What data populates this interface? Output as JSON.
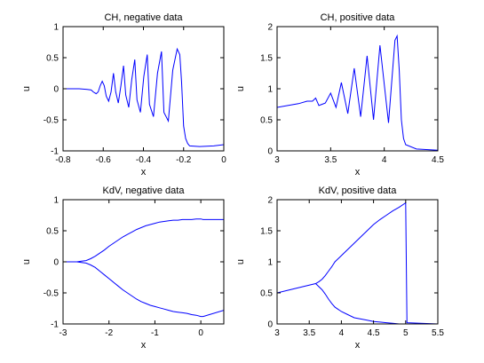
{
  "figure": {
    "line_color": "#0000ff",
    "axis_color": "#000000",
    "background": "#ffffff",
    "grid": false
  },
  "chart_data": [
    {
      "type": "line",
      "title": "CH, negative data",
      "xlabel": "x",
      "ylabel": "u",
      "xlim": [
        -0.8,
        0
      ],
      "ylim": [
        -1,
        1
      ],
      "xticks": [
        -0.8,
        -0.6,
        -0.4,
        -0.2,
        0
      ],
      "xticklabels": [
        "-0.8",
        "-0.6",
        "-0.4",
        "-0.2",
        "0"
      ],
      "yticks": [
        -1,
        -0.5,
        0,
        0.5,
        1
      ],
      "yticklabels": [
        "-1",
        "-0.5",
        "0",
        "0.5",
        "1"
      ],
      "series": [
        {
          "x": [
            -0.8,
            -0.72,
            -0.68,
            -0.66,
            -0.65,
            -0.64,
            -0.635,
            -0.625,
            -0.615,
            -0.605,
            -0.595,
            -0.585,
            -0.573,
            -0.561,
            -0.549,
            -0.538,
            -0.525,
            -0.512,
            -0.499,
            -0.488,
            -0.473,
            -0.458,
            -0.443,
            -0.432,
            -0.415,
            -0.398,
            -0.381,
            -0.37,
            -0.35,
            -0.33,
            -0.31,
            -0.298,
            -0.276,
            -0.254,
            -0.232,
            -0.219,
            -0.21,
            -0.2,
            -0.19,
            -0.18,
            -0.17,
            -0.12,
            -0.05,
            0
          ],
          "y": [
            0,
            0,
            -0.01,
            -0.02,
            -0.05,
            -0.07,
            -0.08,
            -0.05,
            0.05,
            0.12,
            0.05,
            -0.12,
            -0.2,
            -0.05,
            0.25,
            -0.05,
            -0.23,
            0.05,
            0.37,
            -0.1,
            -0.3,
            0.15,
            0.47,
            -0.18,
            -0.38,
            0.2,
            0.55,
            -0.25,
            -0.45,
            0.25,
            0.6,
            -0.38,
            -0.52,
            0.3,
            0.64,
            0.55,
            0.1,
            -0.6,
            -0.8,
            -0.88,
            -0.92,
            -0.93,
            -0.92,
            -0.9
          ]
        }
      ]
    },
    {
      "type": "line",
      "title": "CH, positive data",
      "xlabel": "x",
      "ylabel": "u",
      "xlim": [
        3,
        4.5
      ],
      "ylim": [
        0,
        2
      ],
      "xticks": [
        3,
        3.5,
        4,
        4.5
      ],
      "xticklabels": [
        "3",
        "3.5",
        "4",
        "4.5"
      ],
      "yticks": [
        0,
        0.5,
        1,
        1.5,
        2
      ],
      "yticklabels": [
        "0",
        "0.5",
        "1",
        "1.5",
        "2"
      ],
      "series": [
        {
          "x": [
            3.0,
            3.1,
            3.2,
            3.28,
            3.33,
            3.36,
            3.39,
            3.42,
            3.45,
            3.5,
            3.55,
            3.6,
            3.66,
            3.72,
            3.78,
            3.84,
            3.9,
            3.96,
            4.04,
            4.1,
            4.12,
            4.14,
            4.16,
            4.18,
            4.2,
            4.3,
            4.5
          ],
          "y": [
            0.7,
            0.73,
            0.76,
            0.8,
            0.8,
            0.85,
            0.73,
            0.75,
            0.77,
            0.93,
            0.7,
            1.1,
            0.6,
            1.33,
            0.55,
            1.53,
            0.5,
            1.7,
            0.45,
            1.78,
            1.85,
            1.3,
            0.5,
            0.2,
            0.1,
            0.03,
            0.01
          ]
        }
      ]
    },
    {
      "type": "line",
      "title": "KdV, negative data",
      "xlabel": "x",
      "ylabel": "u",
      "xlim": [
        -3,
        0.5
      ],
      "ylim": [
        -1,
        1
      ],
      "xticks": [
        -3,
        -2,
        -1,
        0
      ],
      "xticklabels": [
        "-3",
        "-2",
        "-1",
        "0"
      ],
      "yticks": [
        -1,
        -0.5,
        0,
        0.5,
        1
      ],
      "yticklabels": [
        "-1",
        "-0.5",
        "0",
        "0.5",
        "1"
      ],
      "series": [
        {
          "x": [
            -3.0,
            -2.9,
            -2.8,
            -2.7,
            -2.6,
            -2.5,
            -2.4,
            -2.3,
            -2.2,
            -2.1,
            -2.0,
            -1.9,
            -1.8,
            -1.7,
            -1.6,
            -1.5,
            -1.4,
            -1.3,
            -1.2,
            -1.1,
            -1.0,
            -0.9,
            -0.8,
            -0.7,
            -0.6,
            -0.5,
            -0.4,
            -0.3,
            -0.2,
            -0.1,
            0.0,
            0.05,
            0.5
          ],
          "y": [
            0.0,
            0.0,
            0.0,
            0.0,
            0.01,
            0.02,
            0.05,
            0.09,
            0.14,
            0.19,
            0.25,
            0.3,
            0.35,
            0.4,
            0.44,
            0.48,
            0.52,
            0.55,
            0.58,
            0.6,
            0.62,
            0.64,
            0.65,
            0.66,
            0.67,
            0.67,
            0.68,
            0.68,
            0.68,
            0.69,
            0.69,
            0.68,
            0.68
          ]
        },
        {
          "x": [
            -3.0,
            -2.9,
            -2.8,
            -2.7,
            -2.6,
            -2.5,
            -2.4,
            -2.3,
            -2.2,
            -2.1,
            -2.0,
            -1.9,
            -1.8,
            -1.7,
            -1.6,
            -1.5,
            -1.4,
            -1.3,
            -1.2,
            -1.1,
            -1.0,
            -0.9,
            -0.8,
            -0.7,
            -0.6,
            -0.5,
            -0.4,
            -0.3,
            -0.2,
            -0.1,
            0.0,
            0.05,
            0.5
          ],
          "y": [
            0.0,
            0.0,
            0.0,
            0.0,
            -0.01,
            -0.02,
            -0.05,
            -0.09,
            -0.15,
            -0.21,
            -0.27,
            -0.33,
            -0.39,
            -0.45,
            -0.5,
            -0.55,
            -0.6,
            -0.64,
            -0.67,
            -0.7,
            -0.72,
            -0.74,
            -0.76,
            -0.78,
            -0.8,
            -0.81,
            -0.82,
            -0.83,
            -0.85,
            -0.86,
            -0.88,
            -0.88,
            -0.78
          ]
        }
      ]
    },
    {
      "type": "line",
      "title": "KdV, positive data",
      "xlabel": "x",
      "ylabel": "u",
      "xlim": [
        3,
        5.5
      ],
      "ylim": [
        0,
        2
      ],
      "xticks": [
        3,
        3.5,
        4,
        4.5,
        5,
        5.5
      ],
      "xticklabels": [
        "3",
        "3.5",
        "4",
        "4.5",
        "5",
        "5.5"
      ],
      "yticks": [
        0,
        0.5,
        1,
        1.5,
        2
      ],
      "yticklabels": [
        "0",
        "0.5",
        "1",
        "1.5",
        "2"
      ],
      "series": [
        {
          "x": [
            3.0,
            3.2,
            3.4,
            3.6,
            3.65,
            3.7,
            3.75,
            3.8,
            3.85,
            3.9,
            4.0,
            4.1,
            4.2,
            4.3,
            4.4,
            4.5,
            4.6,
            4.7,
            4.8,
            4.9,
            5.0,
            5.02,
            5.5
          ],
          "y": [
            0.5,
            0.55,
            0.6,
            0.65,
            0.68,
            0.72,
            0.78,
            0.85,
            0.92,
            1.0,
            1.1,
            1.2,
            1.3,
            1.4,
            1.5,
            1.6,
            1.68,
            1.75,
            1.82,
            1.88,
            1.95,
            0.02,
            0.0
          ]
        },
        {
          "x": [
            3.6,
            3.65,
            3.7,
            3.75,
            3.8,
            3.85,
            3.9,
            4.0,
            4.1,
            4.2,
            4.3,
            4.4,
            4.5,
            4.6,
            4.7,
            4.8,
            4.9,
            5.0
          ],
          "y": [
            0.65,
            0.6,
            0.55,
            0.48,
            0.4,
            0.33,
            0.27,
            0.2,
            0.15,
            0.1,
            0.08,
            0.06,
            0.04,
            0.03,
            0.02,
            0.01,
            0.0,
            0.0
          ]
        }
      ]
    }
  ]
}
